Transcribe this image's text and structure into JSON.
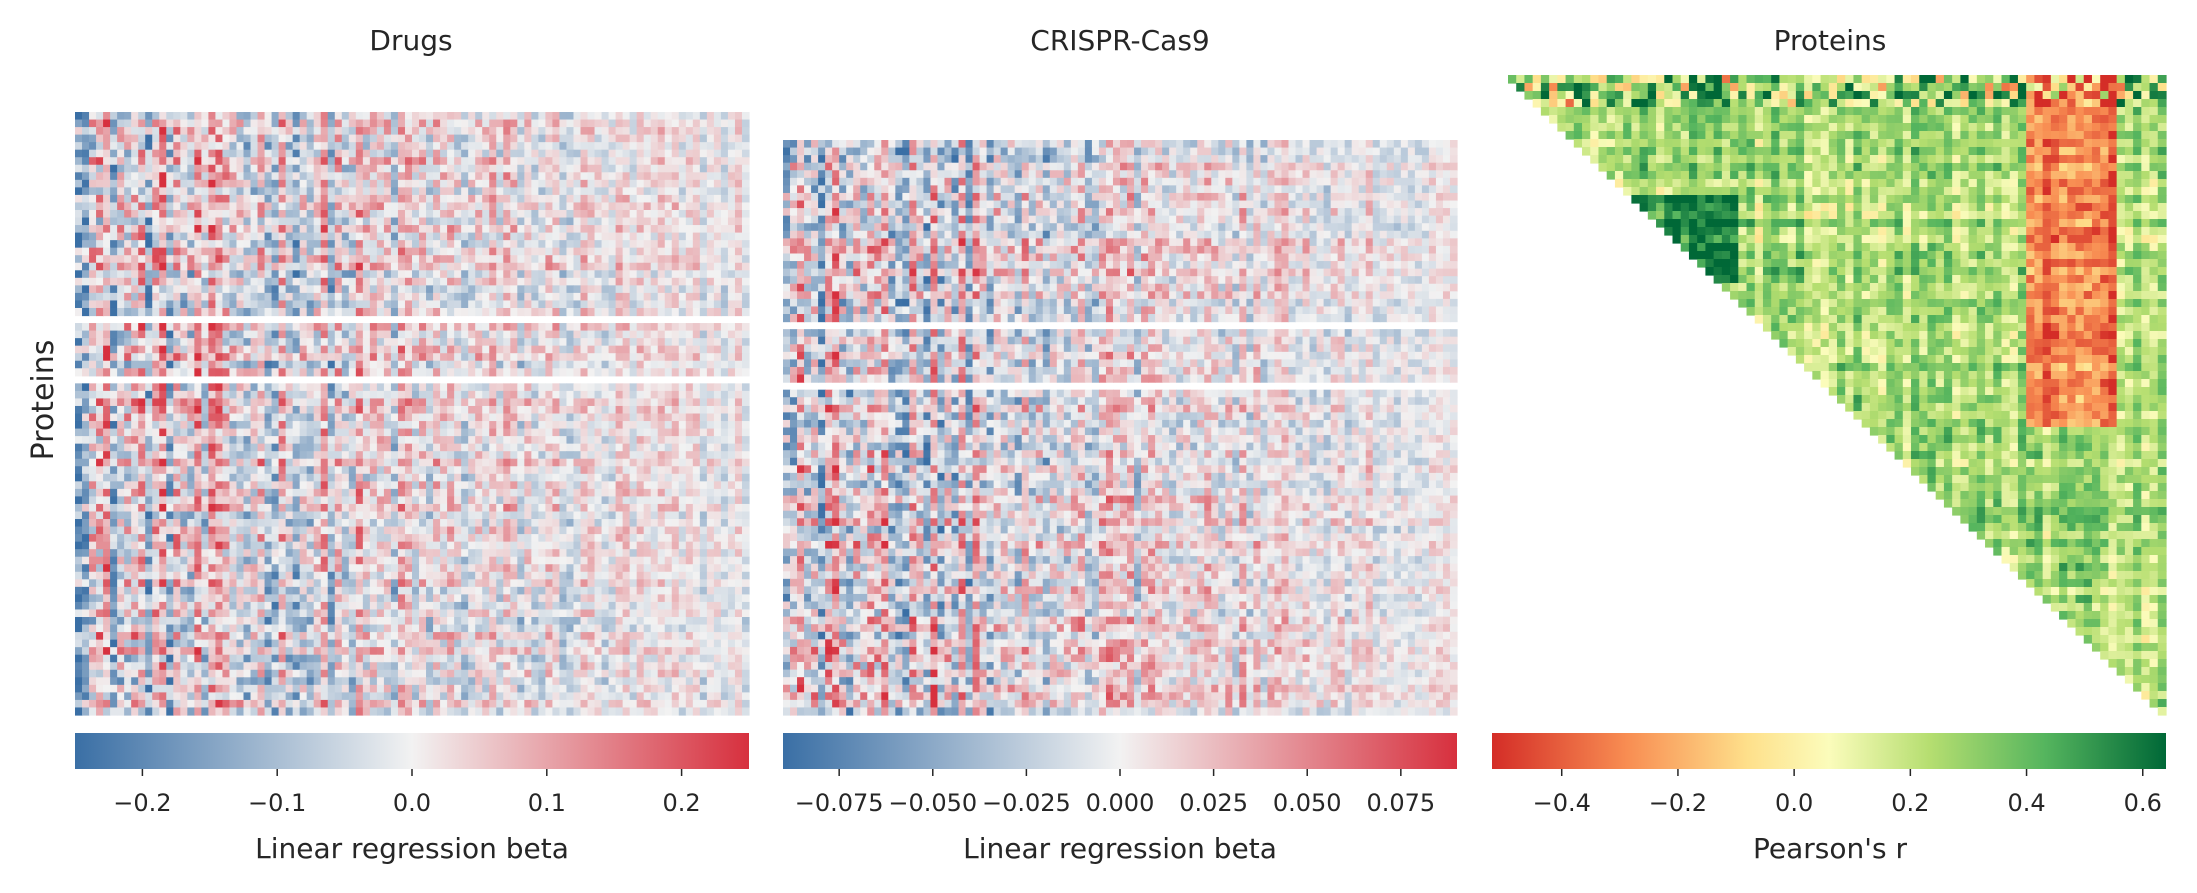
{
  "chart_data": [
    {
      "type": "heatmap",
      "title": "Drugs",
      "ylabel": "Proteins",
      "colormap": "diverging blue-white-red",
      "colors": {
        "low": "#3a6fa5",
        "mid": "#f2f2f2",
        "high": "#d7303e"
      },
      "colorbar": {
        "label": "Linear regression beta",
        "range": [
          -0.25,
          0.25
        ],
        "ticks": [
          -0.2,
          -0.1,
          0.0,
          0.1,
          0.2
        ],
        "tick_labels": [
          "−0.2",
          "−0.1",
          "0.0",
          "0.1",
          "0.2"
        ]
      }
    },
    {
      "type": "heatmap",
      "title": "CRISPR-Cas9",
      "colormap": "diverging blue-white-red",
      "colors": {
        "low": "#3a6fa5",
        "mid": "#f2f2f2",
        "high": "#d7303e"
      },
      "colorbar": {
        "label": "Linear regression beta",
        "range": [
          -0.09,
          0.09
        ],
        "ticks": [
          -0.075,
          -0.05,
          -0.025,
          0.0,
          0.025,
          0.05,
          0.075
        ],
        "tick_labels": [
          "−0.075",
          "−0.050",
          "−0.025",
          "0.000",
          "0.025",
          "0.050",
          "0.075"
        ]
      }
    },
    {
      "type": "heatmap",
      "title": "Proteins",
      "mask": "lower triangle (upper triangle shown)",
      "colormap": "RdYlGn",
      "colors": {
        "low": "#d42d27",
        "mid": "#fbfcbb",
        "high": "#006837"
      },
      "colorbar": {
        "label": "Pearson's r",
        "range": [
          -0.52,
          0.64
        ],
        "ticks": [
          -0.4,
          -0.2,
          0.0,
          0.2,
          0.4,
          0.6
        ],
        "tick_labels": [
          "−0.4",
          "−0.2",
          "0.0",
          "0.2",
          "0.4",
          "0.6"
        ]
      }
    }
  ]
}
